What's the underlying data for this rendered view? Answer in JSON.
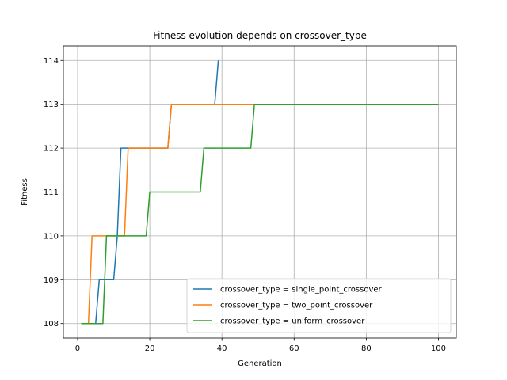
{
  "chart_data": {
    "type": "line",
    "title": "Fitness evolution depends on crossover_type",
    "xlabel": "Generation",
    "ylabel": "Fitness",
    "xlim": [
      -3.95,
      104.95
    ],
    "ylim": [
      107.67,
      114.33
    ],
    "xticks": [
      0,
      20,
      40,
      60,
      80,
      100
    ],
    "yticks": [
      108,
      109,
      110,
      111,
      112,
      113,
      114
    ],
    "xtick_labels": [
      "0",
      "20",
      "40",
      "60",
      "80",
      "100"
    ],
    "ytick_labels": [
      "108",
      "109",
      "110",
      "111",
      "112",
      "113",
      "114"
    ],
    "grid": true,
    "legend_position": "lower-right",
    "series": [
      {
        "name": "crossover_type = single_point_crossover",
        "color": "#1f77b4",
        "points": [
          [
            1,
            108
          ],
          [
            2,
            108
          ],
          [
            3,
            108
          ],
          [
            4,
            108
          ],
          [
            5,
            108
          ],
          [
            6,
            109
          ],
          [
            7,
            109
          ],
          [
            8,
            109
          ],
          [
            9,
            109
          ],
          [
            10,
            109
          ],
          [
            11,
            110
          ],
          [
            12,
            112
          ],
          [
            13,
            112
          ],
          [
            14,
            112
          ],
          [
            15,
            112
          ],
          [
            16,
            112
          ],
          [
            17,
            112
          ],
          [
            18,
            112
          ],
          [
            19,
            112
          ],
          [
            20,
            112
          ],
          [
            21,
            112
          ],
          [
            22,
            112
          ],
          [
            23,
            112
          ],
          [
            24,
            112
          ],
          [
            25,
            112
          ],
          [
            26,
            113
          ],
          [
            27,
            113
          ],
          [
            28,
            113
          ],
          [
            29,
            113
          ],
          [
            30,
            113
          ],
          [
            31,
            113
          ],
          [
            32,
            113
          ],
          [
            33,
            113
          ],
          [
            34,
            113
          ],
          [
            35,
            113
          ],
          [
            36,
            113
          ],
          [
            37,
            113
          ],
          [
            38,
            113
          ],
          [
            39,
            114
          ]
        ]
      },
      {
        "name": "crossover_type = two_point_crossover",
        "color": "#ff7f0e",
        "points": [
          [
            1,
            108
          ],
          [
            2,
            108
          ],
          [
            3,
            108
          ],
          [
            4,
            110
          ],
          [
            5,
            110
          ],
          [
            6,
            110
          ],
          [
            7,
            110
          ],
          [
            8,
            110
          ],
          [
            9,
            110
          ],
          [
            10,
            110
          ],
          [
            11,
            110
          ],
          [
            12,
            110
          ],
          [
            13,
            110
          ],
          [
            14,
            112
          ],
          [
            15,
            112
          ],
          [
            16,
            112
          ],
          [
            17,
            112
          ],
          [
            18,
            112
          ],
          [
            19,
            112
          ],
          [
            20,
            112
          ],
          [
            21,
            112
          ],
          [
            22,
            112
          ],
          [
            23,
            112
          ],
          [
            24,
            112
          ],
          [
            25,
            112
          ],
          [
            26,
            113
          ],
          [
            100,
            113
          ]
        ]
      },
      {
        "name": "crossover_type = uniform_crossover",
        "color": "#2ca02c",
        "points": [
          [
            1,
            108
          ],
          [
            2,
            108
          ],
          [
            3,
            108
          ],
          [
            4,
            108
          ],
          [
            5,
            108
          ],
          [
            6,
            108
          ],
          [
            7,
            108
          ],
          [
            8,
            110
          ],
          [
            9,
            110
          ],
          [
            10,
            110
          ],
          [
            11,
            110
          ],
          [
            12,
            110
          ],
          [
            13,
            110
          ],
          [
            14,
            110
          ],
          [
            15,
            110
          ],
          [
            16,
            110
          ],
          [
            17,
            110
          ],
          [
            18,
            110
          ],
          [
            19,
            110
          ],
          [
            20,
            111
          ],
          [
            21,
            111
          ],
          [
            22,
            111
          ],
          [
            23,
            111
          ],
          [
            24,
            111
          ],
          [
            25,
            111
          ],
          [
            26,
            111
          ],
          [
            27,
            111
          ],
          [
            28,
            111
          ],
          [
            29,
            111
          ],
          [
            30,
            111
          ],
          [
            31,
            111
          ],
          [
            32,
            111
          ],
          [
            33,
            111
          ],
          [
            34,
            111
          ],
          [
            35,
            112
          ],
          [
            36,
            112
          ],
          [
            37,
            112
          ],
          [
            38,
            112
          ],
          [
            39,
            112
          ],
          [
            40,
            112
          ],
          [
            41,
            112
          ],
          [
            42,
            112
          ],
          [
            43,
            112
          ],
          [
            44,
            112
          ],
          [
            45,
            112
          ],
          [
            46,
            112
          ],
          [
            47,
            112
          ],
          [
            48,
            112
          ],
          [
            49,
            113
          ],
          [
            100,
            113
          ]
        ]
      }
    ]
  }
}
